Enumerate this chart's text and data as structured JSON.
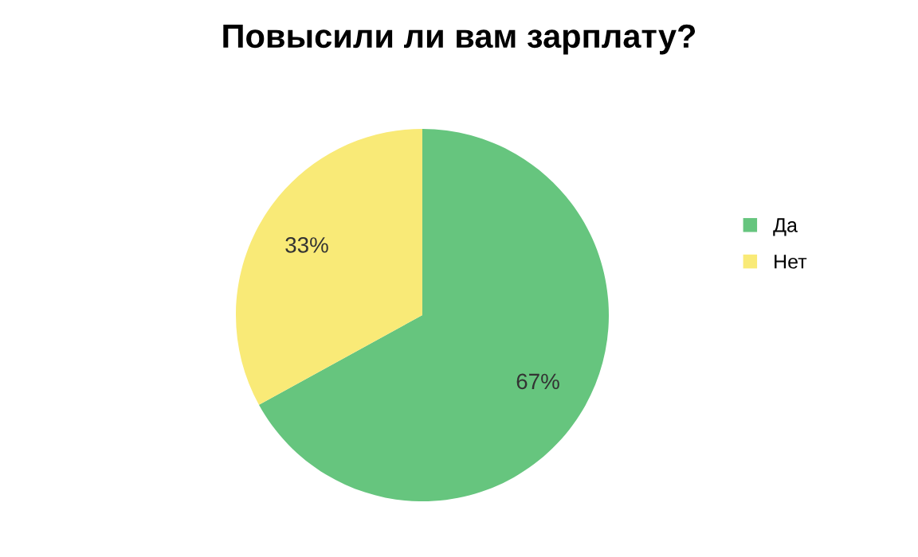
{
  "chart_data": {
    "type": "pie",
    "title": "Повысили ли вам зарплату?",
    "categories": [
      "Да",
      "Нет"
    ],
    "values": [
      67,
      33
    ],
    "colors": [
      "#66c57e",
      "#f9ea77"
    ],
    "value_labels": [
      "67%",
      "33%"
    ],
    "legend": "right"
  }
}
